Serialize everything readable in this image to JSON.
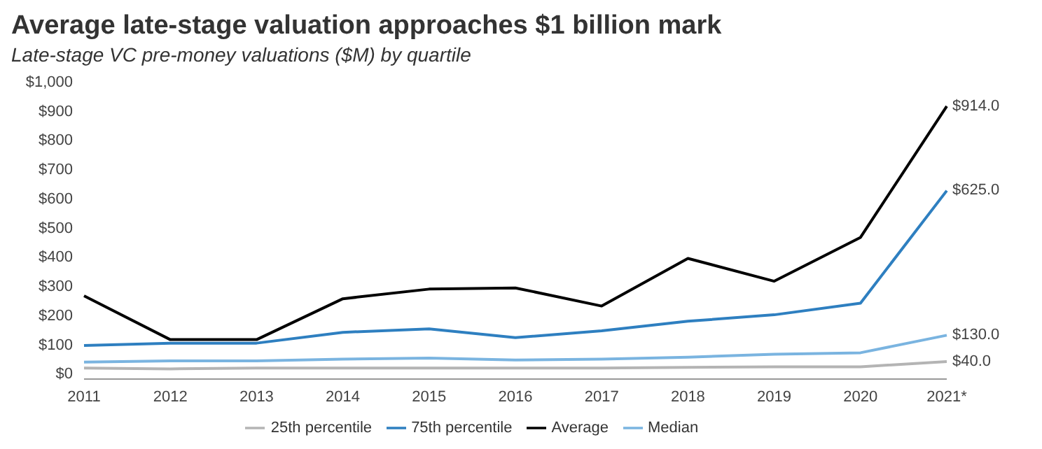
{
  "chart_data": {
    "type": "line",
    "title": "Average late-stage valuation approaches $1 billion mark",
    "subtitle": "Late-stage VC pre-money valuations ($M) by quartile",
    "categories": [
      "2011",
      "2012",
      "2013",
      "2014",
      "2015",
      "2016",
      "2017",
      "2018",
      "2019",
      "2020",
      "2021*"
    ],
    "series": [
      {
        "name": "Average",
        "color": "#000000",
        "values": [
          265,
          115,
          115,
          255,
          288,
          292,
          230,
          393,
          315,
          465,
          914
        ],
        "value_labels": [
          null,
          null,
          null,
          null,
          null,
          null,
          null,
          null,
          null,
          null,
          "$914.0"
        ]
      },
      {
        "name": "75th percentile",
        "color": "#2e7fc0",
        "values": [
          95,
          103,
          103,
          140,
          152,
          122,
          145,
          178,
          200,
          240,
          625
        ],
        "value_labels": [
          null,
          null,
          null,
          null,
          null,
          null,
          null,
          null,
          null,
          null,
          "$625.0"
        ]
      },
      {
        "name": "Median",
        "color": "#7ab4e0",
        "values": [
          38,
          42,
          42,
          48,
          52,
          45,
          48,
          55,
          65,
          70,
          130
        ],
        "value_labels": [
          null,
          null,
          null,
          null,
          null,
          null,
          null,
          null,
          null,
          null,
          "$130.0"
        ]
      },
      {
        "name": "25th percentile",
        "color": "#b4b4b4",
        "values": [
          18,
          15,
          18,
          18,
          18,
          18,
          18,
          20,
          22,
          22,
          40
        ],
        "value_labels": [
          null,
          null,
          null,
          null,
          null,
          null,
          null,
          null,
          null,
          null,
          "$40.0"
        ]
      }
    ],
    "ylim": [
      -20,
      1000
    ],
    "yticks": [
      {
        "value": 0,
        "label": "$0"
      },
      {
        "value": 100,
        "label": "$100"
      },
      {
        "value": 200,
        "label": "$200"
      },
      {
        "value": 300,
        "label": "$300"
      },
      {
        "value": 400,
        "label": "$400"
      },
      {
        "value": 500,
        "label": "$500"
      },
      {
        "value": 600,
        "label": "$600"
      },
      {
        "value": 700,
        "label": "$700"
      },
      {
        "value": 800,
        "label": "$800"
      },
      {
        "value": 900,
        "label": "$900"
      },
      {
        "value": 1000,
        "label": "$1,000"
      }
    ],
    "grid": false,
    "legend": "bottom",
    "marker": "none",
    "line_style": "solid"
  }
}
